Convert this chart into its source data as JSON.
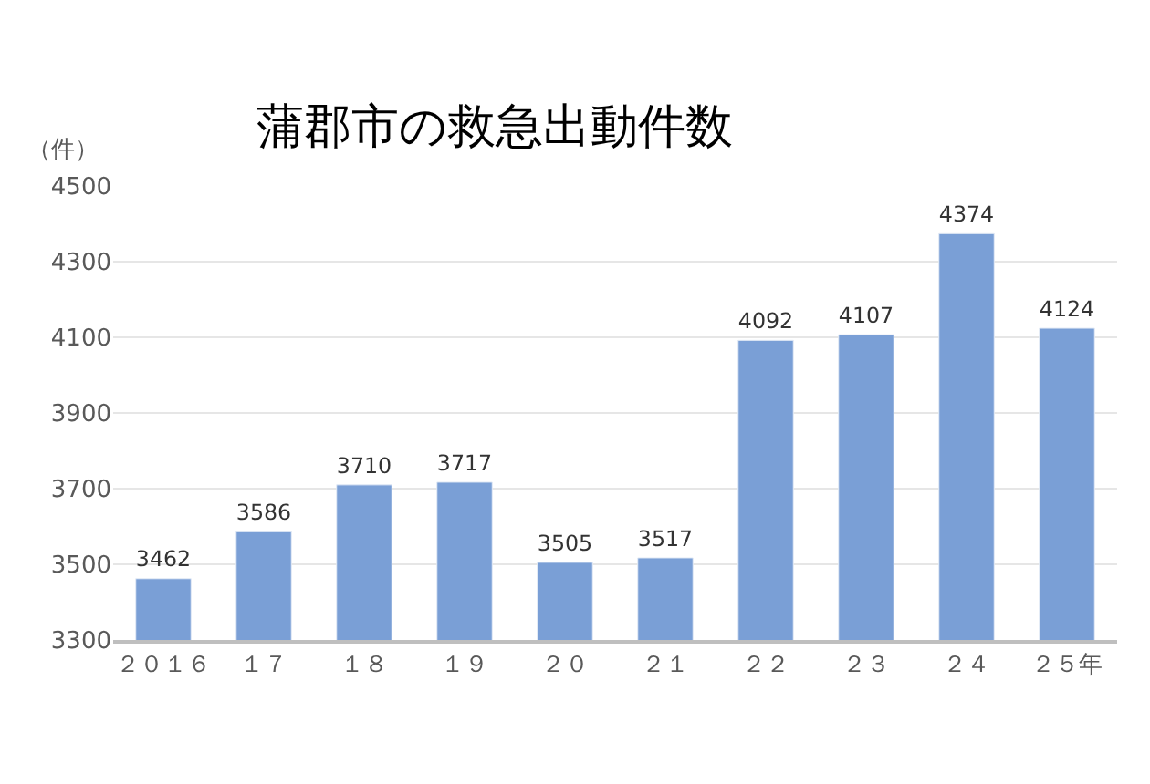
{
  "chart_data": {
    "type": "bar",
    "title": "蒲郡市の救急出動件数",
    "ylabel": "（件）",
    "categories": [
      "２０１６",
      "１７",
      "１８",
      "１９",
      "２０",
      "２１",
      "２２",
      "２３",
      "２４",
      "２５年"
    ],
    "values": [
      3462,
      3586,
      3710,
      3717,
      3505,
      3517,
      4092,
      4107,
      4374,
      4124
    ],
    "color": "#7a9fd6",
    "ylim": [
      3300,
      4500
    ],
    "yticks": [
      3300,
      3500,
      3700,
      3900,
      4100,
      4300,
      4500
    ],
    "grid": "y",
    "data_labels": true
  }
}
